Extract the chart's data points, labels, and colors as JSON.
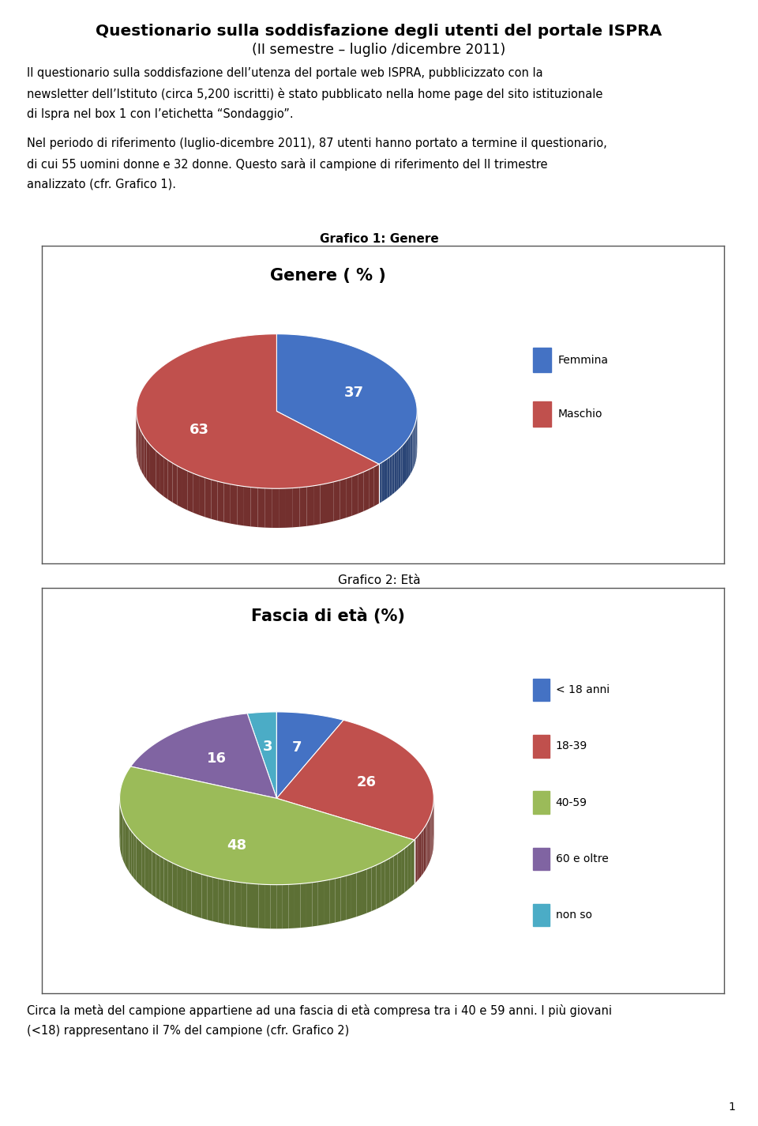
{
  "title": "Questionario sulla soddisfazione degli utenti del portale ISPRA",
  "subtitle": "(II semestre – luglio /dicembre 2011)",
  "body_text1_line1": "Il questionario sulla soddisfazione dell’utenza del portale web ISPRA, pubblicizzato con la",
  "body_text1_line2": "newsletter dell’Istituto (circa 5,200 iscritti) è stato pubblicato nella home page del sito istituzionale",
  "body_text1_line3": "di Ispra nel box 1 con l’etichetta “Sondaggio”.",
  "body_text2_line1": "Nel periodo di riferimento (luglio-dicembre 2011), 87 utenti hanno portato a termine il questionario,",
  "body_text2_line2": "di cui 55 uomini donne e 32 donne. Questo sarà il campione di riferimento del II trimestre",
  "body_text2_line3": "analizzato (cfr. Grafico 1).",
  "grafico1_label": "Grafico 1: Genere",
  "grafico1_title": "Genere ( % )",
  "pie1_values": [
    37,
    63
  ],
  "pie1_labels": [
    "Femmina",
    "Maschio"
  ],
  "pie1_colors": [
    "#4472C4",
    "#C0504D"
  ],
  "grafico2_label": "Grafico 2: Età",
  "grafico2_title": "Fascia di età (%)",
  "pie2_values": [
    7,
    26,
    48,
    16,
    3
  ],
  "pie2_labels": [
    "< 18 anni",
    "18-39",
    "40-59",
    "60 e oltre",
    "non so"
  ],
  "pie2_colors": [
    "#4472C4",
    "#C0504D",
    "#9BBB59",
    "#8064A2",
    "#4BACC6"
  ],
  "footer_line1": "Circa la metà del campione appartiene ad una fascia di età compresa tra i 40 e 59 anni. I più giovani",
  "footer_line2": "(<18) rappresentano il 7% del campione (cfr. Grafico 2)",
  "page_number": "1"
}
